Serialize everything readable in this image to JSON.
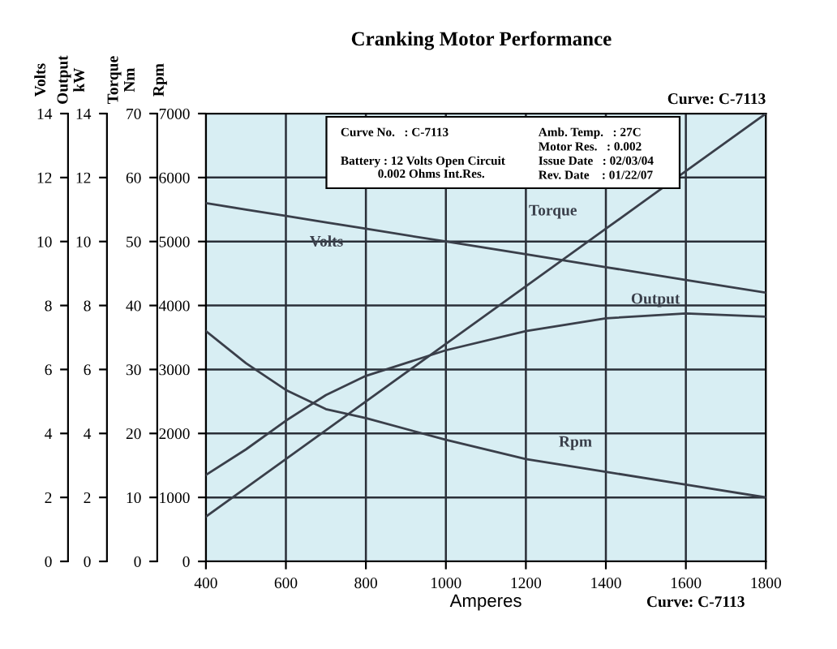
{
  "chart_data": {
    "type": "line",
    "title": "Cranking Motor Performance",
    "xlabel": "Amperes",
    "ylabel": "Rpm",
    "y2label": "Torque\nNm",
    "y3label": "Output\nkW",
    "x": [
      400,
      500,
      600,
      700,
      800,
      1000,
      1200,
      1400,
      1600,
      1800
    ],
    "series": [
      {
        "name": "Volts",
        "color": "#3a3f4a",
        "axis": "y3",
        "values": [
          11.2,
          11.0,
          10.8,
          10.6,
          10.4,
          10.0,
          9.6,
          9.2,
          8.8,
          8.4
        ]
      },
      {
        "name": "Torque",
        "color": "#3a3f4a",
        "axis": "y2",
        "values": [
          7,
          11.5,
          16,
          20.5,
          25,
          34,
          43,
          52,
          61,
          70
        ]
      },
      {
        "name": "Output",
        "color": "#3a3f4a",
        "axis": "y3",
        "values": [
          2.7,
          3.5,
          4.4,
          5.2,
          5.8,
          6.6,
          7.2,
          7.6,
          7.75,
          7.65
        ]
      },
      {
        "name": "Rpm",
        "color": "#3a3f4a",
        "axis": "y",
        "values": [
          3600,
          3100,
          2680,
          2380,
          2240,
          1900,
          1600,
          1400,
          1200,
          1000
        ]
      }
    ],
    "xlim": [
      400,
      1800
    ],
    "xticks": [
      400,
      600,
      800,
      1000,
      1200,
      1400,
      1600,
      1800
    ],
    "ylim": [
      0,
      7000
    ],
    "yticks": [
      0,
      1000,
      2000,
      3000,
      4000,
      5000,
      6000,
      7000
    ],
    "y2lim": [
      0,
      70
    ],
    "y2ticks": [
      0,
      10,
      20,
      30,
      40,
      50,
      60,
      70
    ],
    "y3lim": [
      0,
      14
    ],
    "y3ticks": [
      0,
      2,
      4,
      6,
      8,
      10,
      12,
      14
    ],
    "grid": true,
    "legend": false,
    "marker": "none",
    "line_style": "solid",
    "annotations": [
      "Volts",
      "Curve: C-7113",
      "Curve: C-7113",
      "Curve No.   : C-7113",
      "Amb. Temp.   : 27C",
      "Motor Res.   : 0.002",
      "Battery : 12 Volts Open Circuit\n            0.002 Ohms Int.Res.",
      "Issue Date   : 02/03/04",
      "Rev. Date    : 01/22/07",
      "0",
      "2",
      "4",
      "6",
      "8",
      "10",
      "12",
      "14"
    ]
  }
}
